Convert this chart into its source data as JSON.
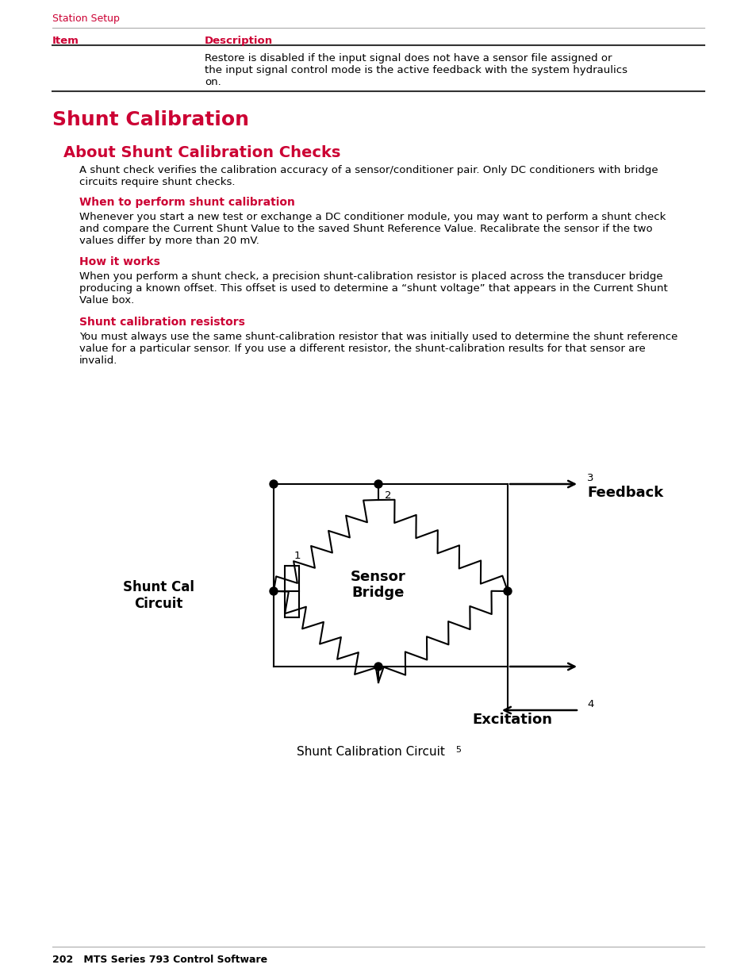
{
  "page_bg": "#ffffff",
  "header_text": "Station Setup",
  "header_color": "#cc0033",
  "header_fontsize": 9,
  "table_item_label": "Item",
  "table_desc_label": "Description",
  "table_label_color": "#cc0033",
  "table_body_text": "Restore is disabled if the input signal does not have a sensor file assigned or\nthe input signal control mode is the active feedback with the system hydraulics\non.",
  "section_title": "Shunt Calibration",
  "section_title_color": "#cc0033",
  "section_title_fontsize": 18,
  "subsection_title": "About Shunt Calibration Checks",
  "subsection_title_color": "#cc0033",
  "subsection_title_fontsize": 14,
  "body_intro": "A shunt check verifies the calibration accuracy of a sensor/conditioner pair. Only DC conditioners with bridge\ncircuits require shunt checks.",
  "sub_heading1": "When to perform shunt calibration",
  "sub_heading1_color": "#cc0033",
  "sub_heading1_fontsize": 10,
  "body1": "Whenever you start a new test or exchange a DC conditioner module, you may want to perform a shunt check\nand compare the Current Shunt Value to the saved Shunt Reference Value. Recalibrate the sensor if the two\nvalues differ by more than 20 mV.",
  "sub_heading2": "How it works",
  "sub_heading2_color": "#cc0033",
  "sub_heading2_fontsize": 10,
  "body2": "When you perform a shunt check, a precision shunt-calibration resistor is placed across the transducer bridge\nproducing a known offset. This offset is used to determine a “shunt voltage” that appears in the Current Shunt\nValue box.",
  "sub_heading3": "Shunt calibration resistors",
  "sub_heading3_color": "#cc0033",
  "sub_heading3_fontsize": 10,
  "body3": "You must always use the same shunt-calibration resistor that was initially used to determine the shunt reference\nvalue for a particular sensor. If you use a different resistor, the shunt-calibration results for that sensor are\ninvalid.",
  "diagram_caption": "Shunt Calibration Circuit",
  "diagram_caption_fontsize": 11,
  "label1": "Shunt Cal\nCircuit",
  "label2": "Sensor\nBridge",
  "label3": "Feedback",
  "label4": "Excitation",
  "num1": "1",
  "num2": "2",
  "num3": "3",
  "num4": "4",
  "num5": "5",
  "footer_text": "202   MTS Series 793 Control Software",
  "footer_fontsize": 9,
  "line_color": "#000000",
  "text_color": "#000000",
  "body_fontsize": 9.5
}
